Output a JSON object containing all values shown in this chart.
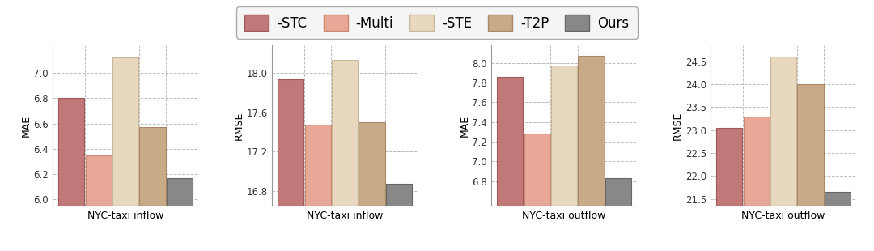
{
  "subplots": [
    {
      "title": "NYC-taxi inflow",
      "ylabel": "MAE",
      "ylim": [
        5.95,
        7.22
      ],
      "yticks": [
        6.0,
        6.2,
        6.4,
        6.6,
        6.8,
        7.0
      ],
      "values": [
        6.8,
        6.35,
        7.12,
        6.57,
        6.17
      ]
    },
    {
      "title": "NYC-taxi inflow",
      "ylabel": "RMSE",
      "ylim": [
        16.65,
        18.28
      ],
      "yticks": [
        16.8,
        17.2,
        17.6,
        18.0
      ],
      "values": [
        17.93,
        17.47,
        18.13,
        17.5,
        16.87
      ]
    },
    {
      "title": "NYC-taxi outflow",
      "ylabel": "MAE",
      "ylim": [
        6.55,
        8.18
      ],
      "yticks": [
        6.8,
        7.0,
        7.2,
        7.4,
        7.6,
        7.8,
        8.0
      ],
      "values": [
        7.86,
        7.28,
        7.97,
        8.07,
        6.83
      ]
    },
    {
      "title": "NYC-taxi outflow",
      "ylabel": "RMSE",
      "ylim": [
        21.35,
        24.85
      ],
      "yticks": [
        21.5,
        22.0,
        22.5,
        23.0,
        23.5,
        24.0,
        24.5
      ],
      "values": [
        23.05,
        23.3,
        24.6,
        24.0,
        21.65
      ]
    }
  ],
  "legend_labels": [
    "-STC",
    "-Multi",
    "-STE",
    "-T2P",
    "Ours"
  ],
  "bar_colors": [
    "#c17878",
    "#e8a898",
    "#e8d8c0",
    "#c8aa88",
    "#888888"
  ],
  "bar_edgecolors": [
    "#a05858",
    "#cc8870",
    "#c8b898",
    "#a88868",
    "#666666"
  ],
  "bar_width": 0.14,
  "background_color": "#ffffff",
  "grid_color": "#bbbbbb",
  "legend_fontsize": 12,
  "axis_fontsize": 9,
  "tick_fontsize": 8.5
}
